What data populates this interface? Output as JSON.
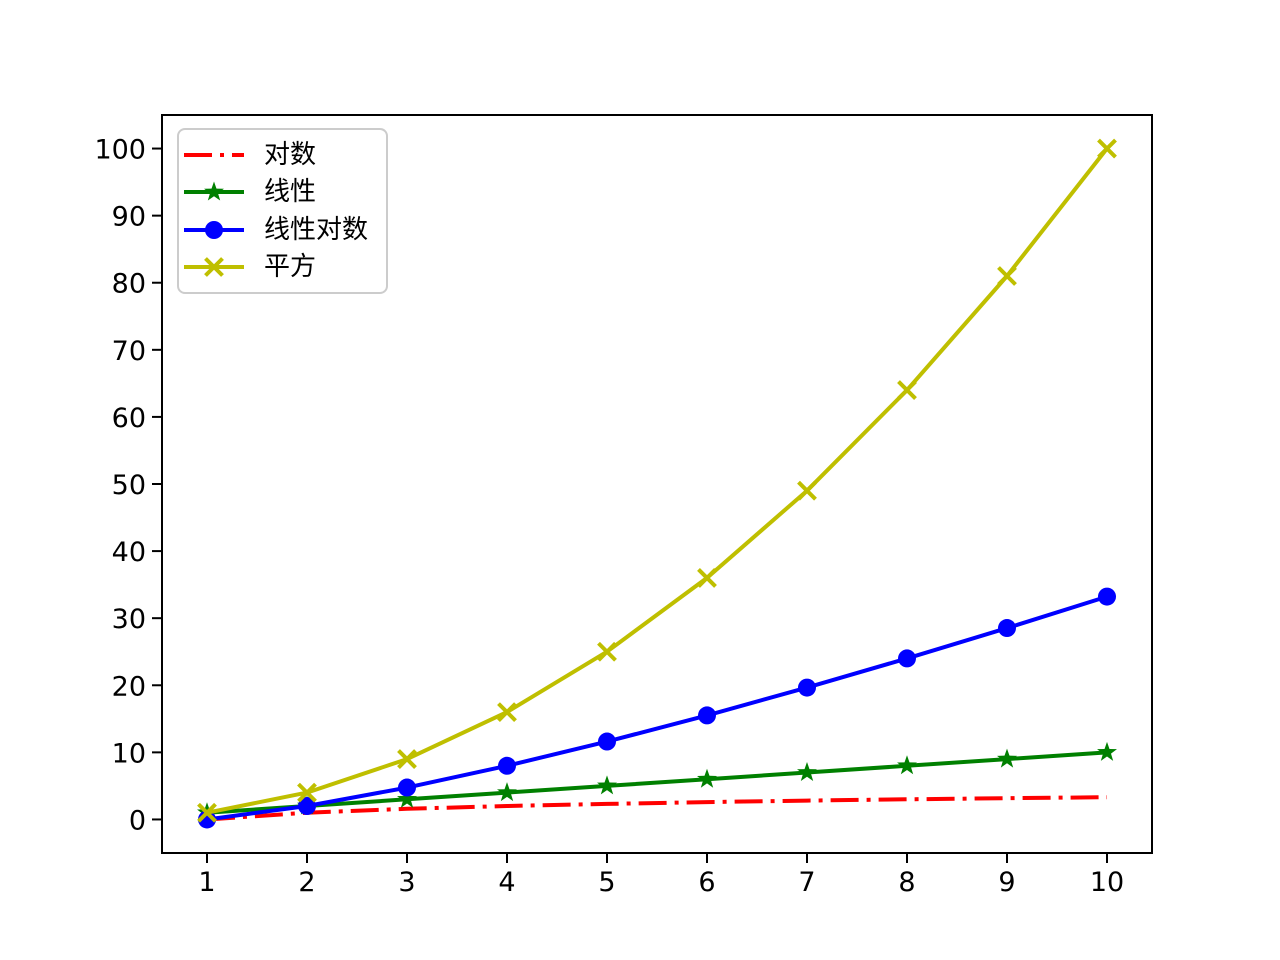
{
  "chart_data": {
    "type": "line",
    "title": "",
    "xlabel": "",
    "ylabel": "",
    "grid": false,
    "legend_position": "upper-left",
    "x": [
      1,
      2,
      3,
      4,
      5,
      6,
      7,
      8,
      9,
      10
    ],
    "xlim": [
      0.55,
      10.45
    ],
    "ylim": [
      -5,
      105
    ],
    "xticks": [
      "1",
      "2",
      "3",
      "4",
      "5",
      "6",
      "7",
      "8",
      "9",
      "10"
    ],
    "yticks": [
      "0",
      "10",
      "20",
      "30",
      "40",
      "50",
      "60",
      "70",
      "80",
      "90",
      "100"
    ],
    "series": [
      {
        "name": "对数",
        "color": "#ff0000",
        "linestyle": "dashdot",
        "marker": "none",
        "values": [
          0,
          1,
          1.585,
          2,
          2.322,
          2.585,
          2.807,
          3,
          3.17,
          3.322
        ]
      },
      {
        "name": "线性",
        "color": "#008000",
        "linestyle": "solid",
        "marker": "star",
        "values": [
          1,
          2,
          3,
          4,
          5,
          6,
          7,
          8,
          9,
          10
        ]
      },
      {
        "name": "线性对数",
        "color": "#0000ff",
        "linestyle": "solid",
        "marker": "circle",
        "values": [
          0,
          2,
          4.755,
          8,
          11.61,
          15.51,
          19.651,
          24,
          28.529,
          33.219
        ]
      },
      {
        "name": "平方",
        "color": "#bfbf00",
        "linestyle": "solid",
        "marker": "x",
        "values": [
          1,
          4,
          9,
          16,
          25,
          36,
          49,
          64,
          81,
          100
        ]
      }
    ]
  }
}
